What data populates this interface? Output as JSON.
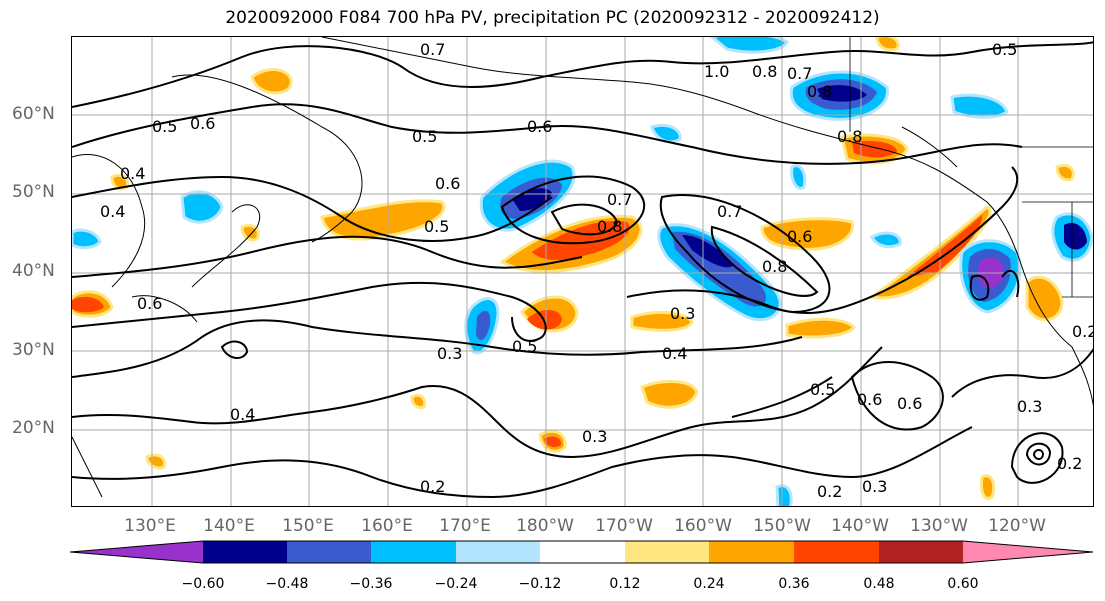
{
  "title": "2020092000 F084 700 hPa PV, precipitation PC (2020092312 - 2020092412)",
  "lat_labels": [
    "60°N",
    "50°N",
    "40°N",
    "30°N",
    "20°N"
  ],
  "lon_labels": [
    "130°E",
    "140°E",
    "150°E",
    "160°E",
    "170°E",
    "180°W",
    "170°W",
    "160°W",
    "150°W",
    "140°W",
    "130°W",
    "120°W"
  ],
  "colorbar": {
    "colors": [
      "#9932cc",
      "#00008b",
      "#3a5bd0",
      "#00bfff",
      "#b3e5ff",
      "#ffffff",
      "#ffe680",
      "#ffa500",
      "#ff4500",
      "#b22222",
      "#ff88b0"
    ],
    "tick_labels": [
      "−0.60",
      "−0.48",
      "−0.36",
      "−0.24",
      "−0.12",
      "0.12",
      "0.24",
      "0.36",
      "0.48",
      "0.60"
    ]
  },
  "contour_labels": [
    "0.7",
    "0.5",
    "0.6",
    "1.0",
    "0.8",
    "0.7",
    "0.5",
    "0.6",
    "0.5",
    "0.6",
    "0.8",
    "0.6",
    "0.7",
    "0.8",
    "0.5",
    "0.4",
    "0.4",
    "0.6",
    "0.7",
    "0.6",
    "0.8",
    "0.5",
    "0.3",
    "0.4",
    "0.5",
    "0.6",
    "0.3",
    "0.2",
    "0.3",
    "0.2",
    "0.4",
    "0.3",
    "0.2",
    "0.8",
    "0.3",
    "0.2"
  ]
}
